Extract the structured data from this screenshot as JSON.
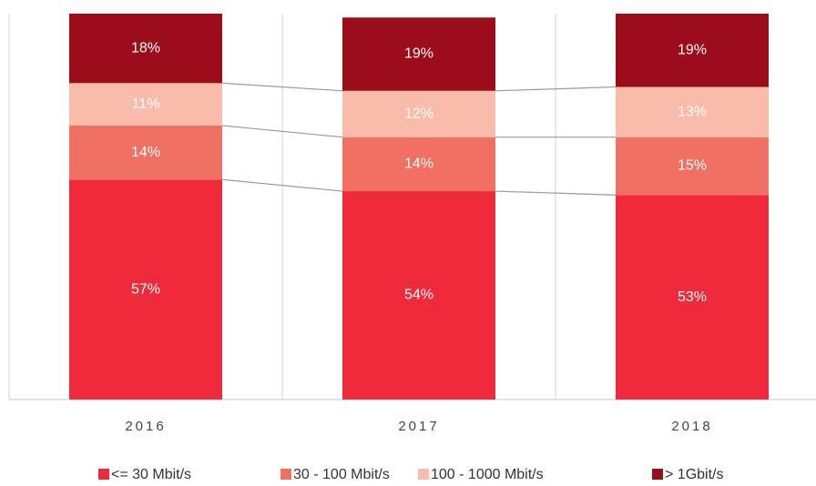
{
  "chart_data": {
    "type": "stacked-bar",
    "categories": [
      "2016",
      "2017",
      "2018"
    ],
    "ylim": [
      0,
      100
    ],
    "series": [
      {
        "name": "<= 30 Mbit/s",
        "color": "#ee2a3b",
        "values": [
          57,
          54,
          53
        ],
        "value_labels": [
          "57%",
          "54%",
          "53%"
        ]
      },
      {
        "name": "30 - 100 Mbit/s",
        "color": "#f07161",
        "values": [
          14,
          14,
          15
        ],
        "value_labels": [
          "14%",
          "14%",
          "15%"
        ]
      },
      {
        "name": "100 - 1000 Mbit/s",
        "color": "#f9bcab",
        "values": [
          11,
          12,
          13
        ],
        "value_labels": [
          "11%",
          "12%",
          "13%"
        ]
      },
      {
        "name": "> 1Gbit/s",
        "color": "#9b0d1a",
        "values": [
          18,
          19,
          19
        ],
        "value_labels": [
          "18%",
          "19%",
          "19%"
        ]
      }
    ]
  }
}
